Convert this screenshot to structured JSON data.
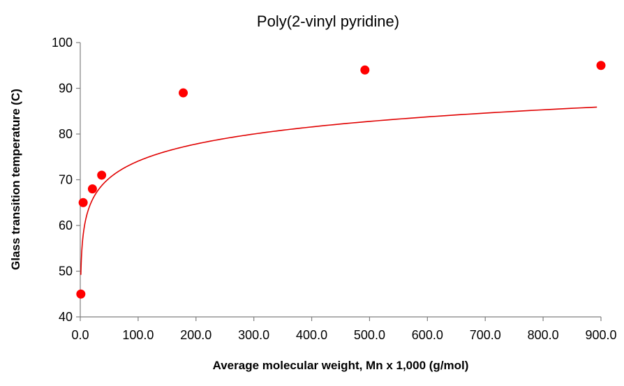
{
  "chart_data": {
    "type": "scatter",
    "title": "Poly(2-vinyl pyridine)",
    "xlabel": "Average molecular  weight, Mn x 1,000 (g/mol)",
    "ylabel": "Glass transition temperature (C)",
    "xlim": [
      0,
      900
    ],
    "ylim": [
      40,
      100
    ],
    "x_ticks": [
      "0.0",
      "100.0",
      "200.0",
      "300.0",
      "400.0",
      "500.0",
      "600.0",
      "700.0",
      "800.0",
      "900.0"
    ],
    "y_ticks": [
      "40",
      "50",
      "60",
      "70",
      "80",
      "90",
      "100"
    ],
    "grid": false,
    "legend": false,
    "colors": {
      "points": "#ff0000",
      "fit": "#e00000",
      "axis": "#7f7f7f"
    },
    "series": [
      {
        "points": [
          {
            "x": 1,
            "y": 45
          },
          {
            "x": 5,
            "y": 65
          },
          {
            "x": 21,
            "y": 68
          },
          {
            "x": 37,
            "y": 71
          },
          {
            "x": 178,
            "y": 89
          },
          {
            "x": 492,
            "y": 94
          },
          {
            "x": 900,
            "y": 95
          }
        ]
      }
    ],
    "trendline": {
      "type": "logarithmic",
      "a": 5.4,
      "b": 49.2,
      "x_range": [
        1,
        893
      ]
    }
  }
}
